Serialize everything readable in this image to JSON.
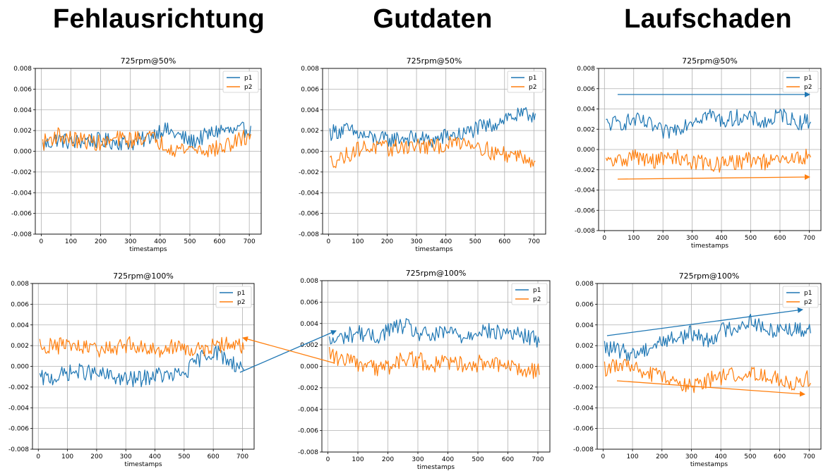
{
  "headings": [
    "Fehlausrichtung",
    "Gutdaten",
    "Laufschaden"
  ],
  "colors": {
    "p1": "#1f77b4",
    "p2": "#ff7f0e",
    "grid": "#b0b0b0",
    "axis": "#000000"
  },
  "chart_data": [
    {
      "id": "fehl-50",
      "column": "Fehlausrichtung",
      "type": "line",
      "title": "725rpm@50%",
      "xlabel": "timestamps",
      "ylabel": "",
      "xlim": [
        -20,
        740
      ],
      "ylim": [
        -0.008,
        0.008
      ],
      "xticks": [
        0,
        100,
        200,
        300,
        400,
        500,
        600,
        700
      ],
      "yticks": [
        -0.008,
        -0.006,
        -0.004,
        -0.002,
        0.0,
        0.002,
        0.004,
        0.006,
        0.008
      ],
      "ytick_labels": [
        "-0.008",
        "-0.006",
        "-0.004",
        "-0.002",
        "0.000",
        "0.002",
        "0.004",
        "0.006",
        "0.008"
      ],
      "grid": true,
      "legend": "top-right",
      "series": [
        {
          "name": "p1",
          "x_start": 5,
          "x_step": 50,
          "values": [
            0.0005,
            0.0012,
            0.0008,
            0.0011,
            0.001,
            0.0009,
            0.0008,
            0.0012,
            0.0022,
            0.0016,
            0.0009,
            0.0015,
            0.0021,
            0.0018,
            0.0023
          ]
        },
        {
          "name": "p2",
          "x_start": 5,
          "x_step": 50,
          "values": [
            0.0008,
            0.0016,
            0.0011,
            0.001,
            0.0007,
            0.0012,
            0.0011,
            0.0015,
            0.0008,
            0.0002,
            0.0003,
            0.0001,
            0.0003,
            0.0009,
            0.0016
          ]
        }
      ]
    },
    {
      "id": "gut-50",
      "column": "Gutdaten",
      "type": "line",
      "title": "725rpm@50%",
      "xlabel": "timestamps",
      "ylabel": "",
      "xlim": [
        -20,
        740
      ],
      "ylim": [
        -0.008,
        0.008
      ],
      "xticks": [
        0,
        100,
        200,
        300,
        400,
        500,
        600,
        700
      ],
      "yticks": [
        -0.008,
        -0.006,
        -0.004,
        -0.002,
        0.0,
        0.002,
        0.004,
        0.006,
        0.008
      ],
      "ytick_labels": [
        "-0.008",
        "-0.006",
        "-0.004",
        "-0.002",
        "0.000",
        "0.002",
        "0.004",
        "0.006",
        "0.008"
      ],
      "grid": true,
      "legend": "top-right",
      "series": [
        {
          "name": "p1",
          "x_start": 5,
          "x_step": 50,
          "values": [
            0.0018,
            0.0021,
            0.0016,
            0.0012,
            0.0011,
            0.0013,
            0.0012,
            0.001,
            0.0015,
            0.0016,
            0.0022,
            0.0025,
            0.0033,
            0.0034,
            0.0036
          ]
        },
        {
          "name": "p2",
          "x_start": 5,
          "x_step": 50,
          "values": [
            -0.001,
            -0.0005,
            0.0003,
            0.0004,
            0.0002,
            0.0005,
            0.0005,
            0.0004,
            0.0006,
            0.001,
            0.0007,
            -0.0001,
            -0.0003,
            -0.0004,
            -0.0009
          ]
        }
      ]
    },
    {
      "id": "lauf-50",
      "column": "Laufschaden",
      "type": "line",
      "title": "725rpm@50%",
      "xlabel": "timestamps",
      "ylabel": "",
      "xlim": [
        -20,
        740
      ],
      "ylim": [
        -0.008,
        0.008
      ],
      "xticks": [
        0,
        100,
        200,
        300,
        400,
        500,
        600,
        700
      ],
      "yticks": [
        -0.008,
        -0.006,
        -0.004,
        -0.002,
        0.0,
        0.002,
        0.004,
        0.006,
        0.008
      ],
      "ytick_labels": [
        "-0.008",
        "-0.006",
        "-0.004",
        "-0.002",
        "0.000",
        "0.002",
        "0.004",
        "0.006",
        "0.008"
      ],
      "grid": true,
      "legend": "top-right",
      "series": [
        {
          "name": "p1",
          "x_start": 5,
          "x_step": 50,
          "values": [
            0.0025,
            0.0026,
            0.0029,
            0.0024,
            0.0016,
            0.0022,
            0.003,
            0.0035,
            0.0028,
            0.0032,
            0.003,
            0.0026,
            0.0035,
            0.0027,
            0.0028
          ]
        },
        {
          "name": "p2",
          "x_start": 5,
          "x_step": 50,
          "values": [
            -0.0013,
            -0.0011,
            -0.0006,
            -0.0012,
            -0.0009,
            -0.0008,
            -0.0012,
            -0.0014,
            -0.0015,
            -0.0012,
            -0.001,
            -0.0013,
            -0.0011,
            -0.0009,
            -0.0006
          ]
        }
      ]
    },
    {
      "id": "fehl-100",
      "column": "Fehlausrichtung",
      "type": "line",
      "title": "725rpm@100%",
      "xlabel": "timestamps",
      "ylabel": "",
      "xlim": [
        -20,
        740
      ],
      "ylim": [
        -0.008,
        0.008
      ],
      "xticks": [
        0,
        100,
        200,
        300,
        400,
        500,
        600,
        700
      ],
      "yticks": [
        -0.008,
        -0.006,
        -0.004,
        -0.002,
        0.0,
        0.002,
        0.004,
        0.006,
        0.008
      ],
      "ytick_labels": [
        "-0.008",
        "-0.006",
        "-0.004",
        "-0.002",
        "0.000",
        "0.002",
        "0.004",
        "0.006",
        "0.008"
      ],
      "grid": true,
      "legend": "top-right",
      "series": [
        {
          "name": "p1",
          "x_start": 5,
          "x_step": 50,
          "values": [
            -0.0012,
            -0.0011,
            -0.0006,
            -0.0005,
            -0.0008,
            -0.001,
            -0.0013,
            -0.0012,
            -0.0008,
            -0.001,
            -0.0006,
            0.0008,
            0.0015,
            0.0005,
            -0.0002
          ]
        },
        {
          "name": "p2",
          "x_start": 5,
          "x_step": 50,
          "values": [
            0.0021,
            0.0019,
            0.0021,
            0.0017,
            0.0016,
            0.0018,
            0.0021,
            0.0019,
            0.0015,
            0.002,
            0.0017,
            0.0016,
            0.0019,
            0.0022,
            0.0019
          ]
        }
      ]
    },
    {
      "id": "gut-100",
      "column": "Gutdaten",
      "type": "line",
      "title": "725rpm@100%",
      "xlabel": "timestamps",
      "ylabel": "",
      "xlim": [
        -20,
        740
      ],
      "ylim": [
        -0.008,
        0.008
      ],
      "xticks": [
        0,
        100,
        200,
        300,
        400,
        500,
        600,
        700
      ],
      "yticks": [
        -0.008,
        -0.006,
        -0.004,
        -0.002,
        0.0,
        0.002,
        0.004,
        0.006,
        0.008
      ],
      "ytick_labels": [
        "-0.008",
        "-0.006",
        "-0.004",
        "-0.002",
        "0.000",
        "0.002",
        "0.004",
        "0.006",
        "0.008"
      ],
      "grid": true,
      "legend": "top-right",
      "series": [
        {
          "name": "p1",
          "x_start": 5,
          "x_step": 50,
          "values": [
            0.0022,
            0.0028,
            0.0032,
            0.0026,
            0.0035,
            0.0038,
            0.003,
            0.0028,
            0.0033,
            0.0027,
            0.0035,
            0.0031,
            0.0032,
            0.0028,
            0.0025
          ]
        },
        {
          "name": "p2",
          "x_start": 5,
          "x_step": 50,
          "values": [
            0.0012,
            0.0005,
            0.0002,
            -0.0002,
            0.0,
            0.0008,
            0.0005,
            0.0002,
            0.0004,
            0.0001,
            0.0003,
            0.0001,
            -0.0002,
            -0.0003,
            -0.0004
          ]
        }
      ]
    },
    {
      "id": "lauf-100",
      "column": "Laufschaden",
      "type": "line",
      "title": "725rpm@100%",
      "xlabel": "timestamps",
      "ylabel": "",
      "xlim": [
        -20,
        740
      ],
      "ylim": [
        -0.008,
        0.008
      ],
      "xticks": [
        0,
        100,
        200,
        300,
        400,
        500,
        600,
        700
      ],
      "yticks": [
        -0.008,
        -0.006,
        -0.004,
        -0.002,
        0.0,
        0.002,
        0.004,
        0.006,
        0.008
      ],
      "ytick_labels": [
        "-0.008",
        "-0.006",
        "-0.004",
        "-0.002",
        "0.000",
        "0.002",
        "0.004",
        "0.006",
        "0.008"
      ],
      "grid": true,
      "legend": "top-right",
      "series": [
        {
          "name": "p1",
          "x_start": 5,
          "x_step": 50,
          "values": [
            0.0018,
            0.0015,
            0.0012,
            0.0018,
            0.0025,
            0.0028,
            0.0032,
            0.0025,
            0.0035,
            0.0038,
            0.0045,
            0.0033,
            0.0038,
            0.0035,
            0.0036
          ]
        },
        {
          "name": "p2",
          "x_start": 5,
          "x_step": 50,
          "values": [
            -0.0002,
            0.0002,
            -0.0003,
            -0.0008,
            -0.001,
            -0.0014,
            -0.002,
            -0.0013,
            -0.001,
            -0.0008,
            -0.0006,
            -0.0008,
            -0.0012,
            -0.0016,
            -0.0011
          ]
        }
      ]
    }
  ]
}
